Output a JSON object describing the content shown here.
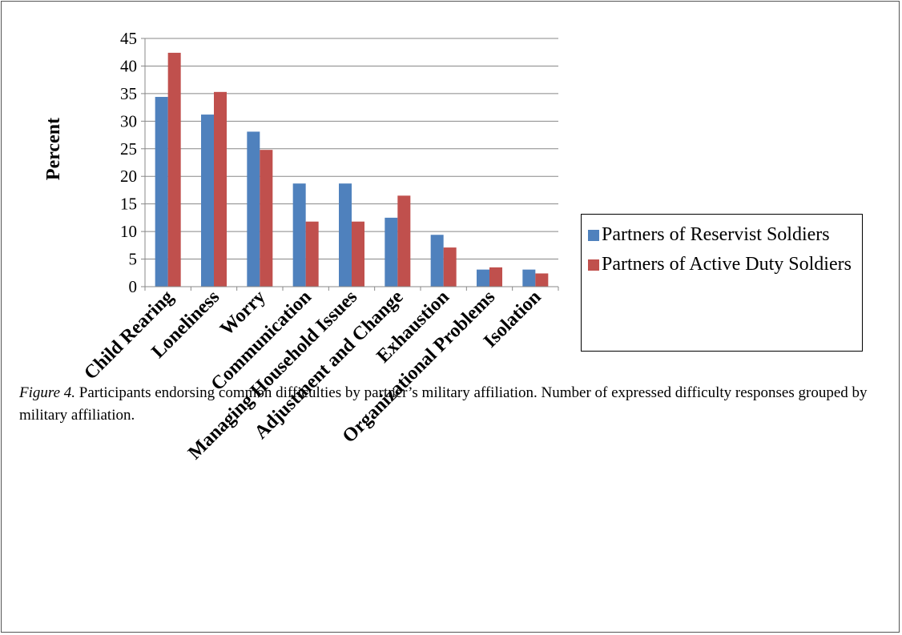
{
  "chart_data": {
    "type": "bar",
    "y_label": "Percent",
    "categories": [
      "Child Rearing",
      "Loneliness",
      "Worry",
      "Communication",
      "Managing Household Issues",
      "Adjustment and Change",
      "Exhaustion",
      "Organizational Problems",
      "Isolation"
    ],
    "series": [
      {
        "name": "Partners of Reservist Soldiers",
        "color": "#4f81bd",
        "values": [
          34.4,
          31.2,
          28.1,
          18.7,
          18.7,
          12.5,
          9.4,
          3.1,
          3.1
        ]
      },
      {
        "name": "Partners of Active Duty Soldiers",
        "color": "#c0504d",
        "values": [
          42.4,
          35.3,
          24.8,
          11.8,
          11.8,
          16.5,
          7.1,
          3.5,
          2.4
        ]
      }
    ],
    "ylim": [
      0,
      45
    ],
    "yticks": [
      0,
      5,
      10,
      15,
      20,
      25,
      30,
      35,
      40,
      45
    ],
    "grid": true,
    "legend": "right"
  },
  "caption_label": "Figure 4.",
  "caption": "Participants endorsing common difficulties by partner’s military affiliation. Number of expressed difficulty responses grouped by military affiliation."
}
